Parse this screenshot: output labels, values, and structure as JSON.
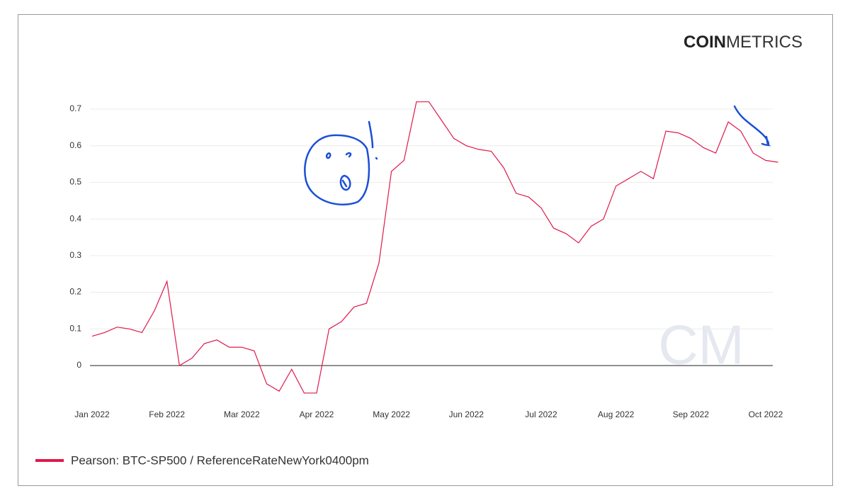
{
  "logo": {
    "bold": "COIN",
    "light": "METRICS"
  },
  "watermark": "CM",
  "chart_data": {
    "type": "line",
    "categories": [
      "Jan 2022",
      null,
      null,
      null,
      null,
      null,
      "Feb 2022",
      null,
      null,
      null,
      null,
      null,
      "Mar 2022",
      null,
      null,
      null,
      null,
      null,
      "Apr 2022",
      null,
      null,
      null,
      null,
      null,
      "May 2022",
      null,
      null,
      null,
      null,
      null,
      "Jun 2022",
      null,
      null,
      null,
      null,
      null,
      "Jul 2022",
      null,
      null,
      null,
      null,
      null,
      "Aug 2022",
      null,
      null,
      null,
      null,
      null,
      "Sep 2022",
      null,
      null,
      null,
      null,
      null,
      "Oct 2022",
      null
    ],
    "series": [
      {
        "name": "Pearson: BTC-SP500 / ReferenceRateNewYork0400pm",
        "color": "#e0194a",
        "values": [
          0.08,
          0.09,
          0.105,
          0.1,
          0.09,
          0.15,
          0.23,
          0.0,
          0.02,
          0.06,
          0.07,
          0.05,
          0.05,
          0.04,
          -0.05,
          -0.07,
          -0.01,
          -0.075,
          -0.075,
          0.1,
          0.12,
          0.16,
          0.17,
          0.28,
          0.53,
          0.56,
          0.72,
          0.72,
          0.67,
          0.62,
          0.6,
          0.59,
          0.585,
          0.54,
          0.47,
          0.46,
          0.43,
          0.375,
          0.36,
          0.335,
          0.38,
          0.4,
          0.49,
          0.51,
          0.53,
          0.51,
          0.64,
          0.635,
          0.62,
          0.595,
          0.58,
          0.665,
          0.64,
          0.58,
          0.56,
          0.555
        ]
      }
    ],
    "ylim": [
      -0.1,
      0.8
    ],
    "yticks": [
      0,
      0.1,
      0.2,
      0.3,
      0.4,
      0.5,
      0.6,
      0.7
    ],
    "grid": true
  }
}
